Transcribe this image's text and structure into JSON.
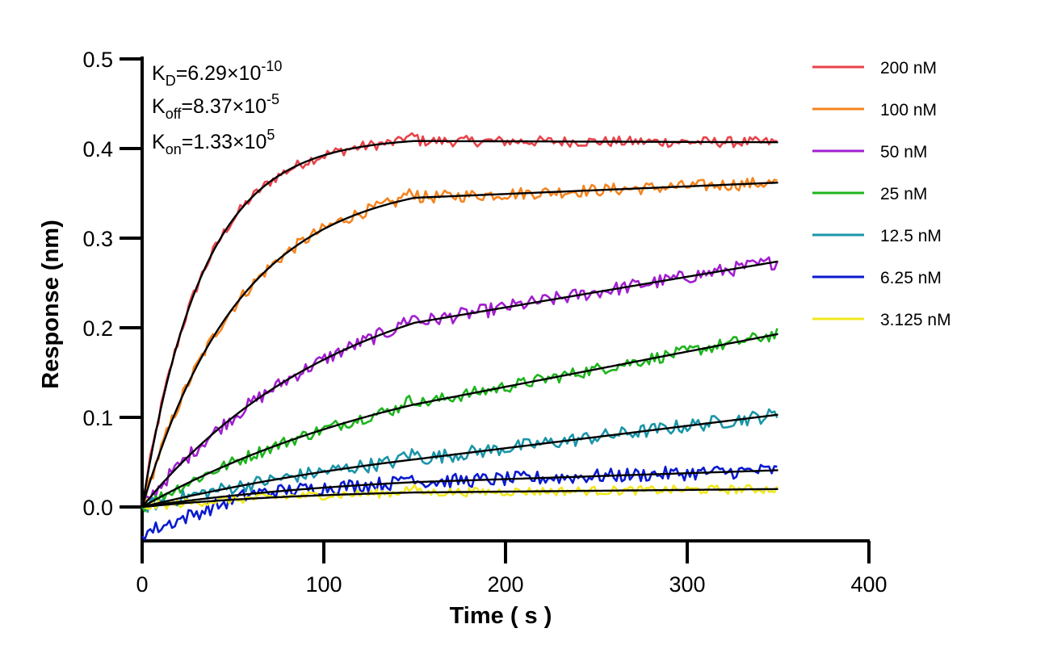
{
  "chart_data": {
    "type": "line",
    "title": "",
    "xlabel": "Time ( s )",
    "ylabel": "Response (nm)",
    "xlim": [
      0,
      400
    ],
    "ylim": [
      -0.04,
      0.5
    ],
    "x_ticks": [
      0,
      100,
      200,
      300,
      400
    ],
    "x_tick_labels": [
      "0",
      "100",
      "200",
      "300",
      "400"
    ],
    "y_ticks": [
      0.0,
      0.1,
      0.2,
      0.3,
      0.4,
      0.5
    ],
    "y_tick_labels": [
      "0.0",
      "0.1",
      "0.2",
      "0.3",
      "0.4",
      "0.5"
    ],
    "grid": false,
    "legend_position": "top-right",
    "association_end": 150,
    "time_end": 350,
    "annotations": {
      "kd": {
        "main": "K",
        "sub": "D",
        "text": "=6.29×10",
        "exp": "-10"
      },
      "koff": {
        "main": "K",
        "sub": "off",
        "text": "=8.37×10",
        "exp": "-5"
      },
      "kon": {
        "main": "K",
        "sub": "on",
        "text": "=1.33×10",
        "exp": "5"
      }
    },
    "series": [
      {
        "name": "200 nM",
        "color": "#e8434a",
        "plateau": 0.413,
        "k": 0.03,
        "end_value": 0.407,
        "noise": 0.003
      },
      {
        "name": "100 nM",
        "color": "#f5841f",
        "plateau": 0.368,
        "k": 0.0185,
        "end_value": 0.362,
        "noise": 0.0035
      },
      {
        "name": "50 nM",
        "color": "#a21fd0",
        "plateau": 0.279,
        "k": 0.0089,
        "end_value": 0.274,
        "noise": 0.004
      },
      {
        "name": "25 nM",
        "color": "#1db51d",
        "plateau": 0.197,
        "k": 0.0058,
        "end_value": 0.193,
        "noise": 0.0035
      },
      {
        "name": "12.5 nM",
        "color": "#1a95a8",
        "plateau": 0.105,
        "k": 0.0047,
        "end_value": 0.103,
        "noise": 0.004
      },
      {
        "name": "6.25 nM",
        "color": "#0a1ad0",
        "plateau": 0.042,
        "k": 0.0072,
        "end_value": 0.041,
        "noise": 0.004,
        "start": -0.03
      },
      {
        "name": "3.125 nM",
        "color": "#f2e81e",
        "plateau": 0.021,
        "k": 0.0098,
        "end_value": 0.02,
        "noise": 0.0025
      }
    ]
  }
}
